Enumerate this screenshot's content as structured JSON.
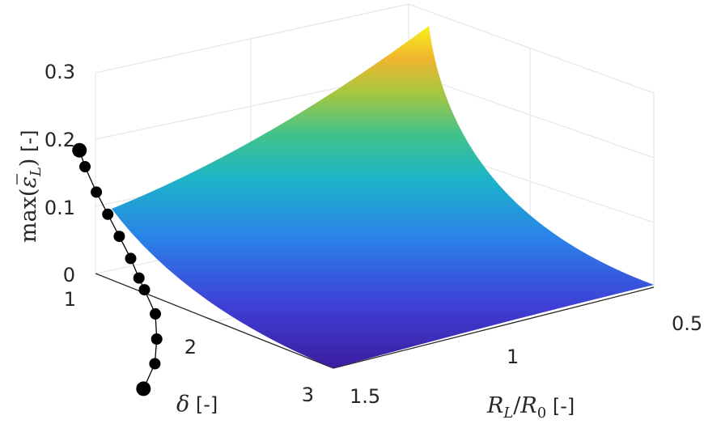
{
  "chart_data": {
    "type": "surface",
    "x_label_parts": [
      "R",
      "L",
      "/",
      "R",
      "0",
      " [-]"
    ],
    "y_label_parts": [
      "δ",
      " [-]"
    ],
    "z_label_parts": [
      "max(",
      "ε",
      "L",
      ")",
      " [-]"
    ],
    "x_ticks": [
      "0.5",
      "1",
      "1.5"
    ],
    "y_ticks": [
      "1",
      "2",
      "3"
    ],
    "z_ticks": [
      "0",
      "0.1",
      "0.2",
      "0.3"
    ],
    "xlim": [
      0.5,
      1.5
    ],
    "ylim": [
      1,
      3
    ],
    "zlim": [
      0,
      0.3
    ],
    "grid": true,
    "colormap": "parula",
    "surface_corners": [
      {
        "x": 0.5,
        "y": 1,
        "z": 0.32
      },
      {
        "x": 1.5,
        "y": 1,
        "z": 0.1
      },
      {
        "x": 0.5,
        "y": 3,
        "z": 0.01
      },
      {
        "x": 1.5,
        "y": 3,
        "z": 0.003
      }
    ],
    "series": [
      {
        "type": "line-with-markers",
        "color": "#000000",
        "points": [
          {
            "x": 1.45,
            "y": 1.0,
            "z": 0.19
          },
          {
            "x": 1.43,
            "y": 1.1,
            "z": 0.175
          },
          {
            "x": 1.41,
            "y": 1.25,
            "z": 0.15
          },
          {
            "x": 1.39,
            "y": 1.4,
            "z": 0.13
          },
          {
            "x": 1.37,
            "y": 1.55,
            "z": 0.11
          },
          {
            "x": 1.35,
            "y": 1.7,
            "z": 0.09
          },
          {
            "x": 1.32,
            "y": 1.85,
            "z": 0.075
          },
          {
            "x": 1.3,
            "y": 1.95,
            "z": 0.067
          },
          {
            "x": 1.26,
            "y": 2.15,
            "z": 0.05
          },
          {
            "x": 1.19,
            "y": 2.35,
            "z": 0.035
          },
          {
            "x": 1.11,
            "y": 2.55,
            "z": 0.022
          },
          {
            "x": 1.0,
            "y": 2.75,
            "z": 0.012
          }
        ]
      }
    ]
  }
}
